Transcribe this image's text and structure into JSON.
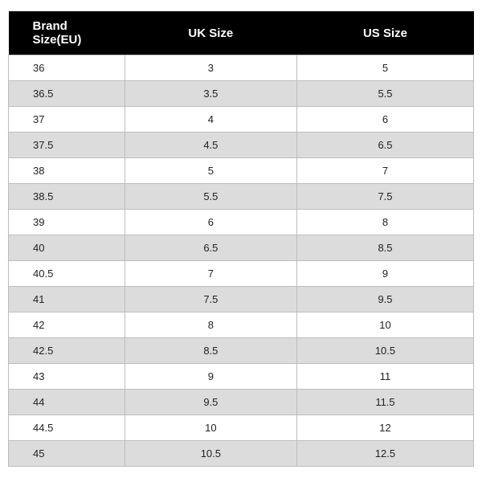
{
  "table": {
    "type": "table",
    "columns": [
      "Brand Size(EU)",
      "UK Size",
      "US Size"
    ],
    "rows": [
      [
        "36",
        "3",
        "5"
      ],
      [
        "36.5",
        "3.5",
        "5.5"
      ],
      [
        "37",
        "4",
        "6"
      ],
      [
        "37.5",
        "4.5",
        "6.5"
      ],
      [
        "38",
        "5",
        "7"
      ],
      [
        "38.5",
        "5.5",
        "7.5"
      ],
      [
        "39",
        "6",
        "8"
      ],
      [
        "40",
        "6.5",
        "8.5"
      ],
      [
        "40.5",
        "7",
        "9"
      ],
      [
        "41",
        "7.5",
        "9.5"
      ],
      [
        "42",
        "8",
        "10"
      ],
      [
        "42.5",
        "8.5",
        "10.5"
      ],
      [
        "43",
        "9",
        "11"
      ],
      [
        "44",
        "9.5",
        "11.5"
      ],
      [
        "44.5",
        "10",
        "12"
      ],
      [
        "45",
        "10.5",
        "12.5"
      ]
    ],
    "header_bg": "#000000",
    "header_text_color": "#ffffff",
    "header_fontsize": 15,
    "cell_fontsize": 13,
    "row_bg_odd": "#ffffff",
    "row_bg_even": "#dcdcdc",
    "border_color": "#bdbdbd",
    "column_widths_pct": [
      25,
      37,
      38
    ],
    "column_align": [
      "left",
      "center",
      "center"
    ]
  }
}
